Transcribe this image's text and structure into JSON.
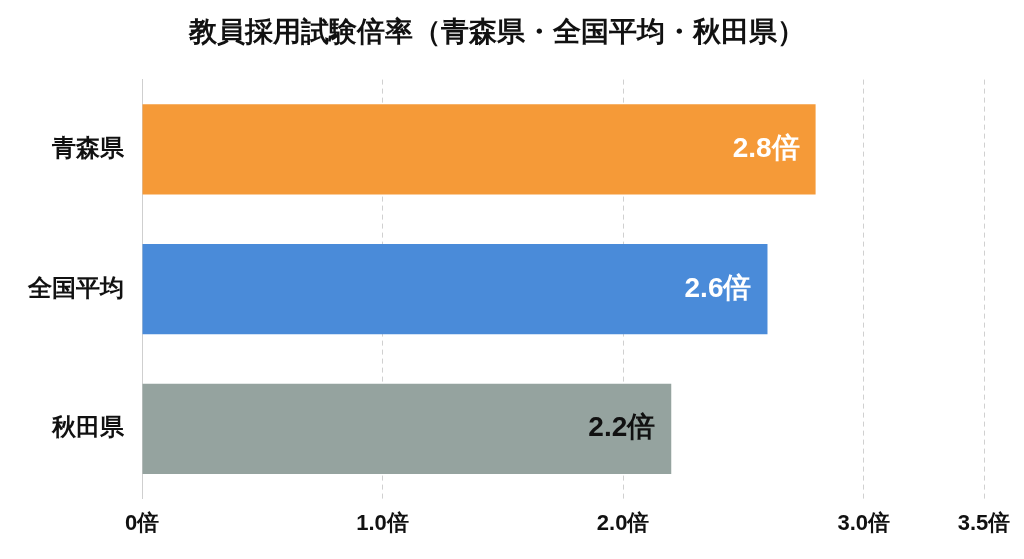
{
  "chart_data": {
    "type": "bar",
    "orientation": "horizontal",
    "title": "教員採用試験倍率（青森県・全国平均・秋田県）",
    "categories": [
      "青森県",
      "全国平均",
      "秋田県"
    ],
    "values": [
      2.8,
      2.6,
      2.2
    ],
    "colors": [
      "#f59a38",
      "#4a8bd9",
      "#95a39f"
    ],
    "value_labels": [
      "2.8倍",
      "2.6倍",
      "2.2倍"
    ],
    "xlim": [
      0,
      3.5
    ],
    "xticks": [
      {
        "value": 0,
        "label": "0倍"
      },
      {
        "value": 1,
        "label": "1.0倍"
      },
      {
        "value": 2,
        "label": "2.0倍"
      },
      {
        "value": 3,
        "label": "3.0倍"
      },
      {
        "value": 3.5,
        "label": "3.5倍"
      }
    ],
    "grid": "x",
    "legend": false
  }
}
